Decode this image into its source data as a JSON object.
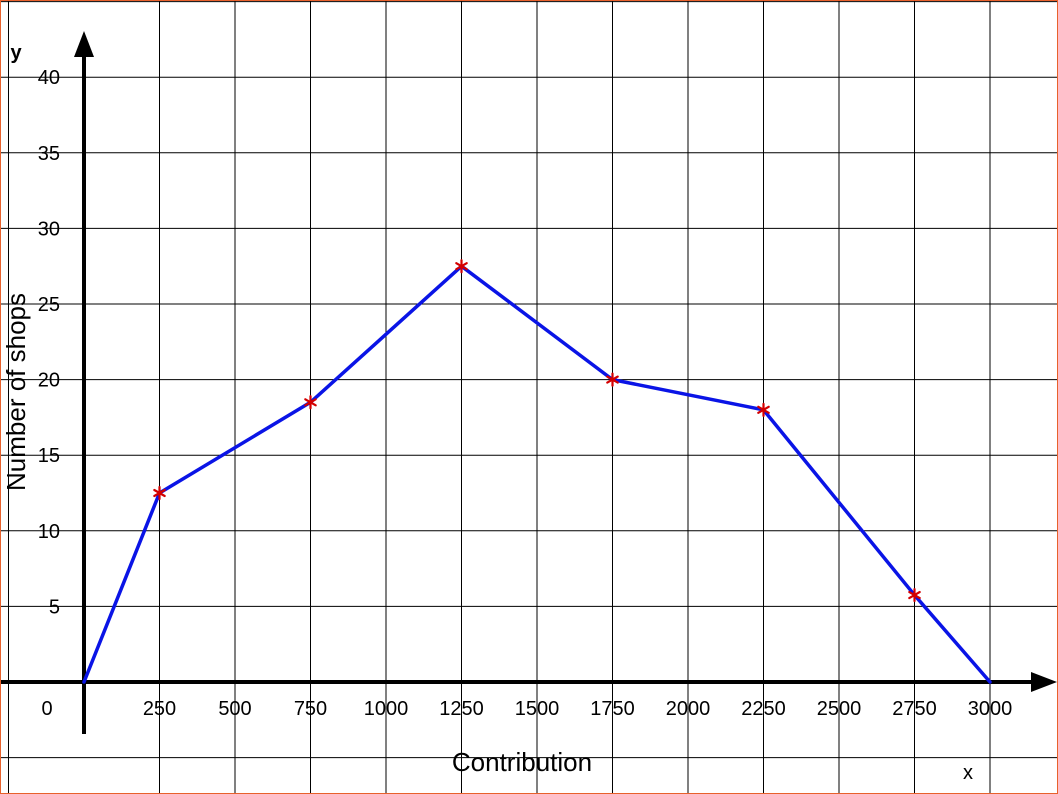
{
  "chart_data": {
    "type": "line",
    "title": "",
    "xlabel": "Contribution",
    "ylabel": "Number of shops",
    "x_axis_letter": "x",
    "y_axis_letter": "y",
    "origin_label": "0",
    "xlim": [
      -250,
      3250
    ],
    "ylim": [
      -5,
      45
    ],
    "grid": true,
    "x_tick_labels": [
      "250",
      "500",
      "750",
      "1000",
      "1250",
      "1500",
      "1750",
      "2000",
      "2250",
      "2500",
      "2750",
      "3000"
    ],
    "x_tick_values": [
      250,
      500,
      750,
      1000,
      1250,
      1500,
      1750,
      2000,
      2250,
      2500,
      2750,
      3000
    ],
    "y_tick_labels": [
      "5",
      "10",
      "15",
      "20",
      "25",
      "30",
      "35",
      "40"
    ],
    "y_tick_values": [
      5,
      10,
      15,
      20,
      25,
      30,
      35,
      40
    ],
    "series": [
      {
        "x": [
          0,
          250,
          750,
          1250,
          1750,
          2250,
          2750,
          3000
        ],
        "y": [
          0,
          12.5,
          18.5,
          27.5,
          20,
          18,
          5.75,
          0
        ],
        "color": "#0a14e6"
      }
    ],
    "markers": {
      "x": [
        250,
        750,
        1250,
        1750,
        2250,
        2750
      ],
      "y": [
        12.5,
        18.5,
        27.5,
        20,
        18,
        5.75
      ],
      "symbol": "*",
      "color": "#d40000"
    }
  }
}
